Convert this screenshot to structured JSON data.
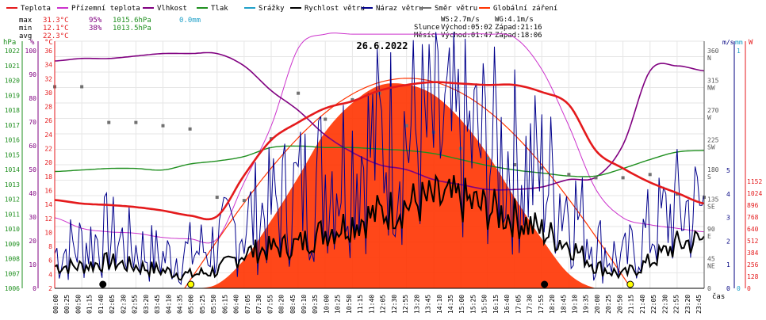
{
  "legend": [
    {
      "label": "Teplota",
      "color": "#e41a1c"
    },
    {
      "label": "Přízemní teplota",
      "color": "#cc33cc"
    },
    {
      "label": "Vlhkost",
      "color": "#800080"
    },
    {
      "label": "Tlak",
      "color": "#1f8f1f"
    },
    {
      "label": "Srážky",
      "color": "#20a0c8"
    },
    {
      "label": "Rychlost větru",
      "color": "#000000"
    },
    {
      "label": "Náraz větru",
      "color": "#00008b"
    },
    {
      "label": "Směr větru",
      "color": "#707070"
    },
    {
      "label": "Globální záření",
      "color": "#ff3300"
    }
  ],
  "stats": {
    "max_label": "max",
    "max_temp": "31.3°C",
    "max_hum": "95%",
    "max_press": "1015.6hPa",
    "rain": "0.0mm",
    "min_label": "min",
    "min_temp": "12.1°C",
    "min_hum": "38%",
    "min_press": "1013.5hPa",
    "avg_label": "avg",
    "avg_temp": "22.3°C"
  },
  "wind_info": {
    "ws": "WS:2.7m/s",
    "wg": "WG:4.1m/s"
  },
  "sun": {
    "label": "Slunce",
    "rise": "Východ:05:02",
    "set": "Západ:21:16"
  },
  "moon": {
    "label": "Měsíc",
    "rise": "Východ:01:47",
    "set": "Západ:18:06"
  },
  "date": "26.6.2022",
  "axes": {
    "hpa_label": "hPa",
    "pct_label": "%",
    "temp_label": "°C",
    "hpa_ticks": [
      "1022",
      "1021",
      "1020",
      "1019",
      "1018",
      "1017",
      "1016",
      "1015",
      "1014",
      "1013",
      "1012",
      "1011",
      "1010",
      "1009",
      "1008",
      "1007",
      "1006"
    ],
    "pct_ticks": [
      "100",
      "90",
      "80",
      "70",
      "60",
      "50",
      "40",
      "30",
      "20",
      "10",
      "0"
    ],
    "temp_ticks": [
      "36",
      "34",
      "32",
      "30",
      "28",
      "26",
      "24",
      "22",
      "20",
      "18",
      "16",
      "14",
      "12",
      "10",
      "8",
      "6",
      "4",
      "2"
    ],
    "dir_ticks": [
      "360",
      "N",
      "315",
      "NW",
      "270",
      "W",
      "225",
      "SW",
      "180",
      "S",
      "135",
      "SE",
      "90",
      "E",
      "45",
      "NE",
      "0"
    ],
    "ms_label": "m/s",
    "mm_label": "mm",
    "w_label": "W",
    "ms_ticks": [
      "5",
      "4",
      "3",
      "2",
      "1",
      "0"
    ],
    "mm_ticks": [
      "1",
      "0"
    ],
    "w_ticks": [
      "1152",
      "1024",
      "896",
      "768",
      "640",
      "512",
      "384",
      "256",
      "128",
      "0"
    ],
    "time_label": "čas",
    "time_ticks": [
      "00:00",
      "00:25",
      "00:50",
      "01:15",
      "01:40",
      "02:05",
      "02:30",
      "02:55",
      "03:20",
      "03:45",
      "04:10",
      "04:35",
      "05:00",
      "05:25",
      "05:50",
      "06:15",
      "06:40",
      "07:05",
      "07:30",
      "07:55",
      "08:20",
      "08:45",
      "09:10",
      "09:35",
      "10:00",
      "10:25",
      "10:50",
      "11:15",
      "11:40",
      "12:05",
      "12:30",
      "12:55",
      "13:20",
      "13:45",
      "14:10",
      "14:35",
      "15:00",
      "15:25",
      "15:50",
      "16:15",
      "16:40",
      "17:05",
      "17:30",
      "17:55",
      "18:20",
      "18:45",
      "19:10",
      "19:35",
      "20:00",
      "20:25",
      "20:50",
      "21:15",
      "21:40",
      "22:05",
      "22:30",
      "22:55",
      "23:20",
      "23:45"
    ]
  },
  "chart_data": {
    "type": "line",
    "x_hours": [
      0,
      1,
      2,
      3,
      4,
      5,
      6,
      7,
      8,
      9,
      10,
      11,
      12,
      13,
      14,
      15,
      16,
      17,
      18,
      19,
      20,
      21,
      22,
      23,
      24
    ],
    "series": [
      {
        "name": "Teplota",
        "unit": "°C",
        "color": "#e41a1c",
        "values": [
          14.5,
          14,
          13.8,
          13.5,
          13,
          12.3,
          12.2,
          18,
          23,
          25.5,
          27.5,
          28.5,
          30,
          30.8,
          31.2,
          31,
          30.8,
          30.8,
          29.8,
          28,
          21.5,
          19,
          17,
          15.5,
          14
        ]
      },
      {
        "name": "Přízemní teplota",
        "unit": "°C",
        "color": "#cc33cc",
        "values": [
          12,
          10.5,
          10,
          9.8,
          9.2,
          9,
          9,
          17,
          25,
          36,
          38,
          38,
          38,
          38,
          38,
          38,
          38,
          37.5,
          33,
          25,
          16,
          12,
          11,
          10.5,
          10
        ]
      },
      {
        "name": "Vlhkost",
        "unit": "%",
        "color": "#800080",
        "values": [
          92,
          93,
          93,
          94,
          95,
          95,
          95,
          90,
          80,
          72,
          62,
          55,
          50,
          48,
          44,
          42,
          40,
          40,
          41,
          44,
          45,
          58,
          88,
          90,
          88
        ]
      },
      {
        "name": "Tlak",
        "unit": "hPa",
        "color": "#1f8f1f",
        "values": [
          1013.8,
          1013.9,
          1014.0,
          1014.0,
          1013.9,
          1014.3,
          1014.5,
          1014.8,
          1015.4,
          1015.5,
          1015.4,
          1015.4,
          1015.3,
          1015.2,
          1015.0,
          1014.6,
          1014.2,
          1013.9,
          1013.7,
          1013.5,
          1013.5,
          1014.0,
          1014.6,
          1015.1,
          1015.2
        ]
      },
      {
        "name": "Globální záření",
        "unit": "W",
        "color": "#ff3300",
        "values": [
          0,
          0,
          0,
          0,
          0,
          0,
          20,
          140,
          330,
          540,
          760,
          900,
          985,
          990,
          940,
          820,
          650,
          440,
          240,
          70,
          0,
          0,
          0,
          0,
          0
        ]
      },
      {
        "name": "Rychlost větru",
        "unit": "m/s",
        "color": "#000000",
        "values": [
          0.5,
          0.5,
          0.6,
          0.5,
          0.4,
          0.3,
          0.4,
          0.8,
          0.9,
          1.0,
          1.3,
          1.5,
          1.7,
          1.9,
          2.0,
          2.0,
          1.8,
          1.6,
          1.3,
          1.0,
          0.5,
          0.3,
          0.6,
          1.0,
          1.1
        ]
      },
      {
        "name": "Náraz větru",
        "unit": "m/s",
        "color": "#00008b",
        "values": [
          0.8,
          1.0,
          1.2,
          0.9,
          0.7,
          0.8,
          1.0,
          1.5,
          1.8,
          2.2,
          2.6,
          3.0,
          3.3,
          3.5,
          3.4,
          3.3,
          3.2,
          2.9,
          2.6,
          2.0,
          1.0,
          0.6,
          1.3,
          1.8,
          1.8
        ]
      },
      {
        "name": "Směr větru",
        "unit": "°",
        "color": "#707070",
        "values": [
          310,
          310,
          255,
          255,
          250,
          245,
          140,
          135,
          230,
          300,
          260,
          290,
          300,
          250,
          240,
          215,
          200,
          190,
          185,
          175,
          170,
          170,
          175,
          145,
          140
        ]
      },
      {
        "name": "Srážky",
        "unit": "mm",
        "color": "#20a0c8",
        "values": [
          0,
          0,
          0,
          0,
          0,
          0,
          0,
          0,
          0,
          0,
          0,
          0,
          0,
          0,
          0,
          0,
          0,
          0,
          0,
          0,
          0,
          0,
          0,
          0,
          0
        ]
      }
    ],
    "solar_max_w": 1020,
    "temp_range": [
      2,
      37
    ],
    "hum_range": [
      0,
      100
    ],
    "press_range": [
      1006,
      1022.5
    ],
    "wind_range": [
      0,
      5.6
    ],
    "dir_range": [
      0,
      380
    ],
    "solar_range": [
      0,
      1200
    ],
    "x_range": [
      0,
      24
    ]
  }
}
